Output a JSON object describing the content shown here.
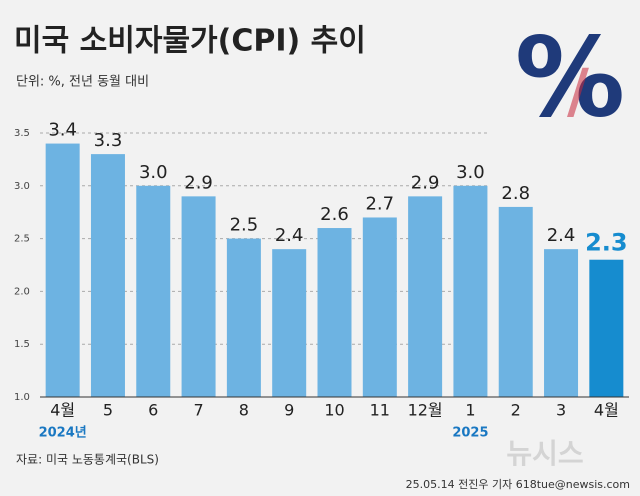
{
  "chart_data": {
    "type": "bar",
    "title": "미국 소비자물가(CPI) 추이",
    "subtitle": "단위: %, 전년 동월 대비",
    "categories": [
      "4월",
      "5",
      "6",
      "7",
      "8",
      "9",
      "10",
      "11",
      "12월",
      "1",
      "2",
      "3",
      "4월"
    ],
    "values": [
      3.4,
      3.3,
      3.0,
      2.9,
      2.5,
      2.4,
      2.6,
      2.7,
      2.9,
      3.0,
      2.8,
      2.4,
      2.3
    ],
    "value_labels": [
      "3.4",
      "3.3",
      "3.0",
      "2.9",
      "2.5",
      "2.4",
      "2.6",
      "2.7",
      "2.9",
      "3.0",
      "2.8",
      "2.4",
      "2.3"
    ],
    "colors": [
      "#6db3e2",
      "#6db3e2",
      "#6db3e2",
      "#6db3e2",
      "#6db3e2",
      "#6db3e2",
      "#6db3e2",
      "#6db3e2",
      "#6db3e2",
      "#6db3e2",
      "#6db3e2",
      "#6db3e2",
      "#168ccf"
    ],
    "ylim": [
      1.0,
      3.5
    ],
    "yticks": [
      {
        "value": 1.0,
        "label": "1.0"
      },
      1.5,
      {
        "value": 2.0,
        "label": "2.0"
      },
      2.5,
      {
        "value": 3.0,
        "label": "3.0"
      },
      3.5
    ],
    "grid": true,
    "annotations": [
      "2024년",
      "2025"
    ],
    "source": "자료: 미국 노동통계국(BLS)",
    "credit": "25.05.14 전진우 기자 618tue@newsis.com",
    "watermark": "뉴시스"
  }
}
